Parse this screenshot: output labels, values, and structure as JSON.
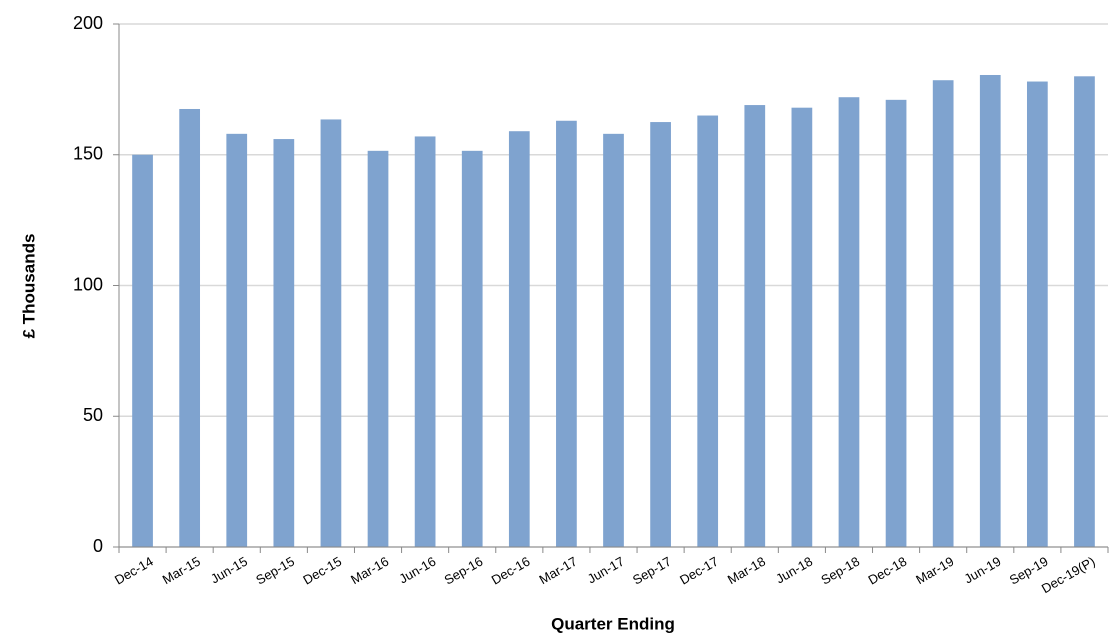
{
  "chart_data": {
    "type": "bar",
    "x_label": "Quarter Ending",
    "y_label": "£ Thousands",
    "categories": [
      "Dec-14",
      "Mar-15",
      "Jun-15",
      "Sep-15",
      "Dec-15",
      "Mar-16",
      "Jun-16",
      "Sep-16",
      "Dec-16",
      "Mar-17",
      "Jun-17",
      "Sep-17",
      "Dec-17",
      "Mar-18",
      "Jun-18",
      "Sep-18",
      "Dec-18",
      "Mar-19",
      "Jun-19",
      "Sep-19",
      "Dec-19(P)"
    ],
    "values": [
      150,
      167.5,
      158,
      156,
      163.5,
      151.5,
      157,
      151.5,
      159,
      163,
      158,
      162.5,
      165,
      169,
      168,
      172,
      171,
      178.5,
      180.5,
      178,
      180
    ],
    "color": "#7fa3cf",
    "ylim": [
      0,
      200
    ],
    "yticks": [
      0,
      50,
      100,
      150,
      200
    ],
    "grid": true
  }
}
